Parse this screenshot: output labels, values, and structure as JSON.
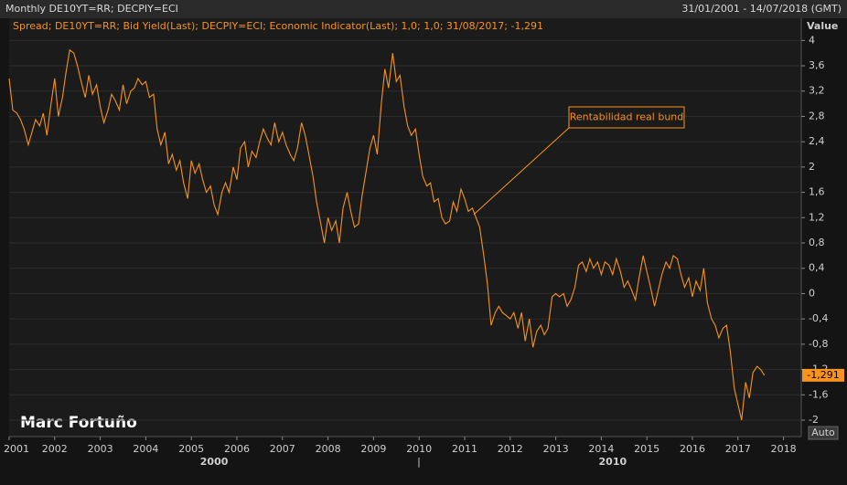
{
  "header": {
    "title": "Monthly DE10YT=RR; DECPIY=ECI",
    "range": "31/01/2001 - 14/07/2018 (GMT)"
  },
  "watermark": "Marc Fortuño",
  "auto_button": "Auto",
  "chart_data": {
    "type": "line",
    "legend_text": "Spread; DE10YT=RR; Bid Yield(Last); DECPIY=ECI; Economic Indicator(Last);  1,0; 1,0; 31/08/2017; -1,291",
    "y_axis_label": "Value",
    "last_value_label": "-1,291",
    "annotations": [
      {
        "text": "Rentabilidad real bund",
        "x": 2011.2,
        "y": 1.25
      }
    ],
    "x_group_labels": [
      {
        "value": 2005.5,
        "label": "2000"
      },
      {
        "value": 2014.25,
        "label": "2010"
      }
    ],
    "xlim": [
      2001,
      2018.39
    ],
    "xticks": [
      2001,
      2002,
      2003,
      2004,
      2005,
      2006,
      2007,
      2008,
      2009,
      2010,
      2011,
      2012,
      2013,
      2014,
      2015,
      2016,
      2017,
      2018
    ],
    "ylim": [
      -2.26,
      4.12
    ],
    "yticks": [
      4,
      {
        "value": 3.6,
        "label": "3,6"
      },
      {
        "value": 3.2,
        "label": "3,2"
      },
      {
        "value": 2.8,
        "label": "2,8"
      },
      {
        "value": 2.4,
        "label": "2,4"
      },
      2,
      {
        "value": 1.6,
        "label": "1,6"
      },
      {
        "value": 1.2,
        "label": "1,2"
      },
      {
        "value": 0.8,
        "label": "0,8"
      },
      {
        "value": 0.4,
        "label": "0,4"
      },
      0,
      {
        "value": -0.4,
        "label": "-0,4"
      },
      {
        "value": -0.8,
        "label": "-0,8"
      },
      {
        "value": -1.2,
        "label": "-1,2"
      },
      {
        "value": -1.6,
        "label": "-1,6"
      },
      -2
    ],
    "grid": true,
    "x": [
      2001.0,
      2001.08,
      2001.17,
      2001.25,
      2001.33,
      2001.42,
      2001.5,
      2001.58,
      2001.67,
      2001.75,
      2001.83,
      2001.92,
      2002.0,
      2002.08,
      2002.17,
      2002.25,
      2002.33,
      2002.42,
      2002.5,
      2002.58,
      2002.67,
      2002.75,
      2002.83,
      2002.92,
      2003.0,
      2003.08,
      2003.17,
      2003.25,
      2003.33,
      2003.42,
      2003.5,
      2003.58,
      2003.67,
      2003.75,
      2003.83,
      2003.92,
      2004.0,
      2004.08,
      2004.17,
      2004.25,
      2004.33,
      2004.42,
      2004.5,
      2004.58,
      2004.67,
      2004.75,
      2004.83,
      2004.92,
      2005.0,
      2005.08,
      2005.17,
      2005.25,
      2005.33,
      2005.42,
      2005.5,
      2005.58,
      2005.67,
      2005.75,
      2005.83,
      2005.92,
      2006.0,
      2006.08,
      2006.17,
      2006.25,
      2006.33,
      2006.42,
      2006.5,
      2006.58,
      2006.67,
      2006.75,
      2006.83,
      2006.92,
      2007.0,
      2007.08,
      2007.17,
      2007.25,
      2007.33,
      2007.42,
      2007.5,
      2007.58,
      2007.67,
      2007.75,
      2007.83,
      2007.92,
      2008.0,
      2008.08,
      2008.17,
      2008.25,
      2008.33,
      2008.42,
      2008.5,
      2008.58,
      2008.67,
      2008.75,
      2008.83,
      2008.92,
      2009.0,
      2009.08,
      2009.17,
      2009.25,
      2009.33,
      2009.42,
      2009.5,
      2009.58,
      2009.67,
      2009.75,
      2009.83,
      2009.92,
      2010.0,
      2010.08,
      2010.17,
      2010.25,
      2010.33,
      2010.42,
      2010.5,
      2010.58,
      2010.67,
      2010.75,
      2010.83,
      2010.92,
      2011.0,
      2011.08,
      2011.17,
      2011.25,
      2011.33,
      2011.42,
      2011.5,
      2011.58,
      2011.67,
      2011.75,
      2011.83,
      2011.92,
      2012.0,
      2012.08,
      2012.17,
      2012.25,
      2012.33,
      2012.42,
      2012.5,
      2012.58,
      2012.67,
      2012.75,
      2012.83,
      2012.92,
      2013.0,
      2013.08,
      2013.17,
      2013.25,
      2013.33,
      2013.42,
      2013.5,
      2013.58,
      2013.67,
      2013.75,
      2013.83,
      2013.92,
      2014.0,
      2014.08,
      2014.17,
      2014.25,
      2014.33,
      2014.42,
      2014.5,
      2014.58,
      2014.67,
      2014.75,
      2014.83,
      2014.92,
      2015.0,
      2015.08,
      2015.17,
      2015.25,
      2015.33,
      2015.42,
      2015.5,
      2015.58,
      2015.67,
      2015.75,
      2015.83,
      2015.92,
      2016.0,
      2016.08,
      2016.17,
      2016.25,
      2016.33,
      2016.42,
      2016.5,
      2016.58,
      2016.67,
      2016.75,
      2016.83,
      2016.92,
      2017.0,
      2017.08,
      2017.17,
      2017.25,
      2017.33,
      2017.42,
      2017.5,
      2017.58
    ],
    "series": [
      {
        "name": "Spread",
        "color": "#f7931e",
        "values": [
          3.4,
          2.9,
          2.85,
          2.75,
          2.6,
          2.35,
          2.55,
          2.75,
          2.65,
          2.85,
          2.5,
          3.0,
          3.4,
          2.8,
          3.1,
          3.5,
          3.85,
          3.8,
          3.6,
          3.35,
          3.1,
          3.45,
          3.15,
          3.3,
          2.95,
          2.7,
          2.9,
          3.15,
          3.05,
          2.9,
          3.3,
          3.0,
          3.2,
          3.25,
          3.4,
          3.3,
          3.35,
          3.1,
          3.15,
          2.6,
          2.35,
          2.55,
          2.05,
          2.2,
          1.95,
          2.1,
          1.75,
          1.5,
          2.1,
          1.9,
          2.05,
          1.8,
          1.6,
          1.7,
          1.4,
          1.25,
          1.6,
          1.75,
          1.6,
          2.0,
          1.8,
          2.3,
          2.4,
          2.0,
          2.25,
          2.15,
          2.4,
          2.6,
          2.45,
          2.35,
          2.7,
          2.4,
          2.55,
          2.35,
          2.2,
          2.1,
          2.3,
          2.7,
          2.5,
          2.2,
          1.85,
          1.45,
          1.15,
          0.8,
          1.2,
          1.0,
          1.15,
          0.8,
          1.35,
          1.6,
          1.3,
          1.05,
          1.1,
          1.55,
          1.9,
          2.3,
          2.5,
          2.2,
          3.0,
          3.55,
          3.25,
          3.8,
          3.35,
          3.45,
          2.95,
          2.65,
          2.5,
          2.6,
          2.2,
          1.85,
          1.7,
          1.75,
          1.45,
          1.5,
          1.2,
          1.1,
          1.15,
          1.45,
          1.3,
          1.65,
          1.5,
          1.3,
          1.35,
          1.2,
          1.05,
          0.6,
          0.15,
          -0.5,
          -0.3,
          -0.2,
          -0.3,
          -0.35,
          -0.4,
          -0.3,
          -0.55,
          -0.3,
          -0.75,
          -0.4,
          -0.85,
          -0.6,
          -0.5,
          -0.65,
          -0.55,
          -0.05,
          0.0,
          -0.05,
          0.0,
          -0.2,
          -0.1,
          0.1,
          0.45,
          0.5,
          0.35,
          0.55,
          0.4,
          0.5,
          0.3,
          0.5,
          0.45,
          0.3,
          0.55,
          0.35,
          0.1,
          0.2,
          0.05,
          -0.1,
          0.25,
          0.6,
          0.35,
          0.1,
          -0.2,
          0.05,
          0.3,
          0.5,
          0.4,
          0.6,
          0.55,
          0.3,
          0.1,
          0.25,
          -0.05,
          0.2,
          0.05,
          0.4,
          -0.15,
          -0.4,
          -0.5,
          -0.7,
          -0.55,
          -0.5,
          -0.9,
          -1.5,
          -1.75,
          -2.0,
          -1.4,
          -1.65,
          -1.25,
          -1.15,
          -1.2,
          -1.291
        ]
      }
    ]
  }
}
